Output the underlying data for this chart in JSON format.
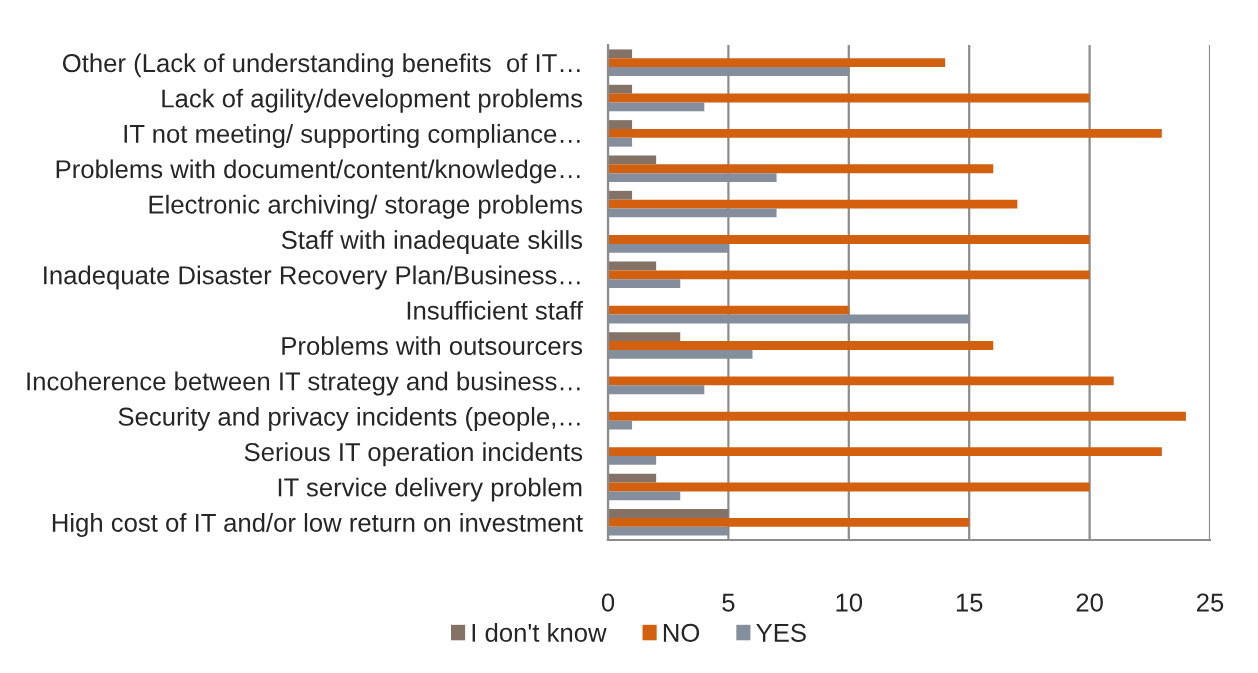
{
  "chart_data": {
    "type": "bar",
    "orientation": "horizontal",
    "categories": [
      "Other (Lack of understanding benefits  of IT…",
      "Lack of agility/development problems",
      "IT not meeting/ supporting compliance…",
      "Problems with document/content/knowledge…",
      "Electronic archiving/ storage problems",
      "Staff with inadequate skills",
      "Inadequate Disaster Recovery Plan/Business…",
      "Insufficient staff",
      "Problems with outsourcers",
      "Incoherence between IT strategy and business…",
      "Security and privacy incidents (people,…",
      "Serious IT operation incidents",
      "IT service delivery problem",
      "High cost of IT and/or low return on investment"
    ],
    "series": [
      {
        "name": "I don't know",
        "color": "#847266",
        "values": [
          1,
          1,
          1,
          2,
          1,
          0,
          2,
          0,
          3,
          0,
          0,
          0,
          2,
          5
        ]
      },
      {
        "name": "NO",
        "color": "#d2600e",
        "values": [
          14,
          20,
          23,
          16,
          17,
          20,
          20,
          10,
          16,
          21,
          24,
          23,
          20,
          15
        ]
      },
      {
        "name": "YES",
        "color": "#858e9d",
        "values": [
          10,
          4,
          1,
          7,
          7,
          5,
          3,
          15,
          6,
          4,
          1,
          2,
          3,
          5
        ]
      }
    ],
    "xlim": [
      0,
      25
    ],
    "xticks": [
      0,
      5,
      10,
      15,
      20,
      25
    ],
    "grid": "x",
    "legend": "bottom"
  }
}
